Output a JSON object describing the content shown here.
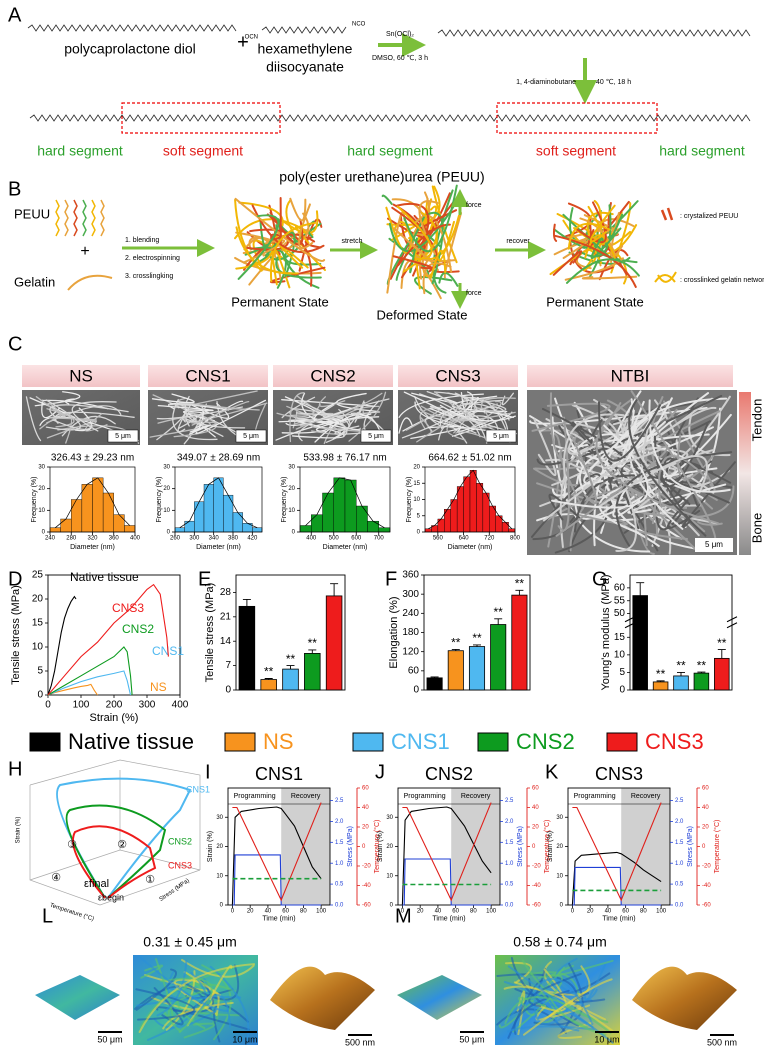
{
  "figure": {
    "panel_labels": [
      "A",
      "B",
      "C",
      "D",
      "E",
      "F",
      "G",
      "H",
      "I",
      "J",
      "K",
      "L",
      "M"
    ],
    "a": {
      "reactant1": "polycaprolactone diol",
      "plus": "+",
      "reactant2": [
        "hexamethylene",
        "diisocyanate"
      ],
      "end_groups": [
        "OCN",
        "NCO"
      ],
      "catalyst": "Sn(OCl)₂",
      "condition1": "DMSO, 60 ℃, 3 h",
      "reagent2": "1, 4-diaminobutane",
      "condition2": "40 ℃, 18 h",
      "segments": [
        "hard segment",
        "soft segment",
        "hard segment",
        "soft segment",
        "hard segment"
      ],
      "product": "poly(ester urethane)urea (PEUU)"
    },
    "b": {
      "peuu": "PEUU",
      "plus": "+",
      "gelatin": "Gelatin",
      "steps": [
        "1. blending",
        "2. electrospinning",
        "3. crosslingking"
      ],
      "state1": "Permanent State",
      "stretch": "stretch",
      "state2": "Deformed State",
      "force": [
        "force",
        "force"
      ],
      "recover": "recover",
      "state3": "Permanent State",
      "legend": [
        ": crystalized PEUU",
        ": crosslinked gelatin network"
      ]
    },
    "c": {
      "headers": [
        "NS",
        "CNS1",
        "CNS2",
        "CNS3",
        "NTBI"
      ],
      "scale_bars": [
        "5 μm",
        "5 μm",
        "5 μm",
        "5 μm",
        "5 μm"
      ],
      "gradient_top": "Tendon",
      "gradient_bottom": "Bone"
    },
    "legend": [
      {
        "name": "Native tissue",
        "color": "#000000"
      },
      {
        "name": "NS",
        "color": "#f7931e"
      },
      {
        "name": "CNS1",
        "color": "#4fb8f0"
      },
      {
        "name": "CNS2",
        "color": "#0d9b1f"
      },
      {
        "name": "CNS3",
        "color": "#ee1c1c"
      }
    ],
    "h": {
      "curves": [
        "CNS1",
        "CNS2",
        "CNS3"
      ],
      "regions": [
        "③",
        "②",
        "④",
        "①"
      ],
      "eps_final": "εfinal",
      "eps_begin": "εbegin",
      "zlabel": "Strain (%)",
      "xlabel": "Temperature (°C)",
      "ylabel": "Stress (MPa)"
    },
    "l": {
      "roughness": "0.31 ± 0.45 μm",
      "scale_bars": [
        "50 μm",
        "10 μm",
        "500 nm"
      ]
    },
    "m": {
      "roughness": "0.58 ± 0.74 μm",
      "scale_bars": [
        "50 μm",
        "10 μm",
        "500 nm"
      ]
    }
  },
  "chart_data": [
    {
      "type": "line",
      "xlabel": "Strain (%)",
      "ylabel": "Tensile stress (MPa)",
      "xlim": [
        0,
        400
      ],
      "ylim": [
        0,
        25
      ],
      "xticks": [
        0,
        100,
        200,
        300,
        400
      ],
      "yticks": [
        0,
        5,
        10,
        15,
        20,
        25
      ],
      "series": [
        {
          "name": "Native tissue",
          "color": "#000000",
          "x": [
            0,
            10,
            20,
            30,
            40,
            50,
            60,
            70,
            80,
            85
          ],
          "values": [
            0,
            2,
            5,
            9,
            13,
            16,
            18,
            19.5,
            20.5,
            20
          ]
        },
        {
          "name": "NS",
          "color": "#f7931e",
          "x": [
            0,
            20,
            50,
            80,
            100,
            120,
            130,
            140,
            150
          ],
          "values": [
            0,
            0.5,
            1,
            1.5,
            1.8,
            2,
            2.2,
            1,
            0
          ]
        },
        {
          "name": "CNS1",
          "color": "#4fb8f0",
          "x": [
            0,
            50,
            100,
            150,
            200,
            230,
            240,
            250
          ],
          "values": [
            0,
            1.5,
            2.8,
            3.8,
            4.5,
            5,
            3,
            0
          ]
        },
        {
          "name": "CNS2",
          "color": "#0d9b1f",
          "x": [
            0,
            50,
            100,
            150,
            200,
            230,
            240,
            250,
            255
          ],
          "values": [
            0,
            2,
            4,
            6,
            8,
            10,
            9,
            4,
            0
          ]
        },
        {
          "name": "CNS3",
          "color": "#ee1c1c",
          "x": [
            0,
            50,
            100,
            150,
            200,
            250,
            300,
            320,
            340,
            360,
            365
          ],
          "values": [
            0,
            4,
            8,
            11,
            15,
            18,
            22,
            23,
            21,
            12,
            8
          ]
        }
      ]
    },
    {
      "type": "bar",
      "ylabel": "Tensile stress (MPa)",
      "ylim": [
        0,
        33
      ],
      "yticks": [
        0,
        7,
        14,
        21,
        28
      ],
      "values": [
        24,
        3,
        6,
        10.5,
        27
      ],
      "errors": [
        2,
        0.3,
        1,
        1,
        3.5
      ],
      "colors": [
        "#000000",
        "#f7931e",
        "#4fb8f0",
        "#0d9b1f",
        "#ee1c1c"
      ],
      "significance": [
        null,
        "**",
        "**",
        "**",
        null
      ]
    },
    {
      "type": "bar",
      "ylabel": "Elongation (%)",
      "ylim": [
        0,
        360
      ],
      "yticks": [
        0,
        60,
        120,
        180,
        240,
        300,
        360
      ],
      "values": [
        38,
        123,
        136,
        205,
        297
      ],
      "errors": [
        3,
        4,
        5,
        18,
        15
      ],
      "colors": [
        "#000000",
        "#f7931e",
        "#4fb8f0",
        "#0d9b1f",
        "#ee1c1c"
      ],
      "significance": [
        null,
        "**",
        "**",
        "**",
        "**"
      ]
    },
    {
      "type": "bar",
      "ylabel": "Young's modulus (MPa)",
      "ylim": [
        0,
        65
      ],
      "ybreak": [
        18,
        48
      ],
      "yticks": [
        0,
        5,
        10,
        15,
        50,
        55,
        60
      ],
      "values": [
        57,
        2.3,
        4,
        4.8,
        9
      ],
      "errors": [
        5,
        0.3,
        1,
        0.3,
        2.5
      ],
      "colors": [
        "#000000",
        "#f7931e",
        "#4fb8f0",
        "#0d9b1f",
        "#ee1c1c"
      ],
      "significance": [
        null,
        "**",
        "**",
        "**",
        "**"
      ]
    },
    {
      "type": "histogram",
      "title": "326.43 ± 29.23 nm",
      "xlabel": "Diameter (nm)",
      "ylabel": "Frequency (%)",
      "color": "#f7931e",
      "bins": [
        240,
        260,
        280,
        300,
        320,
        340,
        360,
        380,
        400
      ],
      "values": [
        2,
        6,
        15,
        22,
        25,
        18,
        8,
        3
      ],
      "xlim": [
        240,
        400
      ],
      "xticks": [
        240,
        280,
        320,
        360,
        400
      ],
      "ylim": [
        0,
        30
      ],
      "yticks": [
        0,
        10,
        20,
        30
      ]
    },
    {
      "type": "histogram",
      "title": "349.07 ± 28.69 nm",
      "xlabel": "Diameter (nm)",
      "ylabel": "Frequency (%)",
      "color": "#4fb8f0",
      "bins": [
        260,
        280,
        300,
        320,
        340,
        360,
        380,
        400,
        420,
        440
      ],
      "values": [
        2,
        5,
        14,
        22,
        25,
        17,
        9,
        4,
        2
      ],
      "xlim": [
        260,
        440
      ],
      "xticks": [
        260,
        300,
        340,
        380,
        420
      ],
      "ylim": [
        0,
        30
      ],
      "yticks": [
        0,
        10,
        20,
        30
      ]
    },
    {
      "type": "histogram",
      "title": "533.98 ± 76.17 nm",
      "xlabel": "Diameter (nm)",
      "ylabel": "Frequency (%)",
      "color": "#0d9b1f",
      "bins": [
        350,
        400,
        450,
        500,
        550,
        600,
        650,
        700,
        750
      ],
      "values": [
        3,
        8,
        18,
        25,
        24,
        12,
        5,
        2
      ],
      "xlim": [
        350,
        750
      ],
      "xticks": [
        400,
        500,
        600,
        700
      ],
      "ylim": [
        0,
        30
      ],
      "yticks": [
        0,
        10,
        20,
        30
      ]
    },
    {
      "type": "histogram",
      "title": "664.62 ± 51.02 nm",
      "xlabel": "Diameter (nm)",
      "ylabel": "Frequency (%)",
      "color": "#ee1c1c",
      "bins": [
        520,
        540,
        560,
        580,
        600,
        620,
        640,
        660,
        680,
        700,
        720,
        740,
        760,
        780,
        800
      ],
      "values": [
        1,
        2,
        4,
        7,
        10,
        14,
        17,
        19,
        15,
        12,
        8,
        5,
        3,
        1
      ],
      "xlim": [
        520,
        800
      ],
      "xticks": [
        560,
        640,
        720,
        800
      ],
      "ylim": [
        0,
        20
      ],
      "yticks": [
        0,
        5,
        10,
        15,
        20
      ]
    },
    {
      "type": "line",
      "title": "CNS1",
      "xlabel": "Time (min)",
      "ylabel": "Strain (%)",
      "y2label": "Stress (MPa)",
      "y3label": "Temperature (°C)",
      "xlim": [
        -5,
        110
      ],
      "xticks": [
        0,
        20,
        40,
        60,
        80,
        100
      ],
      "ylim": [
        0,
        40
      ],
      "yticks": [
        0,
        10,
        20,
        30
      ],
      "y2lim": [
        0,
        2.8
      ],
      "y2ticks": [
        {
          "value": 0,
          "label": "0.0"
        },
        {
          "value": 0.5,
          "label": "0.5"
        },
        {
          "value": 1,
          "label": "1.0"
        },
        {
          "value": 1.5,
          "label": "1.5"
        },
        {
          "value": 2,
          "label": "2.0"
        },
        {
          "value": 2.5,
          "label": "2.5"
        }
      ],
      "y3lim": [
        -60,
        60
      ],
      "y3ticks": [
        -60,
        -40,
        -20,
        0,
        20,
        40,
        60
      ],
      "phases": [
        "Programming",
        "Recovery"
      ],
      "recovery_span": [
        55,
        110
      ],
      "series": [
        {
          "color": "#000000",
          "x": [
            0,
            3,
            10,
            30,
            50,
            55,
            60,
            70,
            80,
            90,
            100
          ],
          "values": [
            0,
            30,
            32,
            33,
            33.5,
            33,
            31,
            27,
            20,
            13,
            9
          ]
        },
        {
          "color": "#1f3fd6",
          "axis": "y2",
          "x": [
            0,
            2,
            3,
            54,
            55,
            100
          ],
          "values": [
            0,
            0,
            1.2,
            1.2,
            0,
            0
          ]
        },
        {
          "color": "#e0201b",
          "axis": "y3",
          "x": [
            0,
            5,
            55,
            100
          ],
          "values": [
            40,
            40,
            -55,
            45
          ]
        },
        {
          "color": "#1a9e3a",
          "dash": true,
          "x": [
            0,
            100
          ],
          "values": [
            9,
            9
          ]
        }
      ]
    },
    {
      "type": "line",
      "title": "CNS2",
      "xlabel": "Time (min)",
      "ylabel": "Strain (%)",
      "y2label": "Stress (MPa)",
      "y3label": "Temperature (°C)",
      "xlim": [
        -5,
        110
      ],
      "xticks": [
        0,
        20,
        40,
        60,
        80,
        100
      ],
      "ylim": [
        0,
        40
      ],
      "yticks": [
        0,
        10,
        20,
        30
      ],
      "y2lim": [
        0,
        2.8
      ],
      "y2ticks": [
        {
          "value": 0,
          "label": "0.0"
        },
        {
          "value": 0.5,
          "label": "0.5"
        },
        {
          "value": 1,
          "label": "1.0"
        },
        {
          "value": 1.5,
          "label": "1.5"
        },
        {
          "value": 2,
          "label": "2.0"
        },
        {
          "value": 2.5,
          "label": "2.5"
        }
      ],
      "y3lim": [
        -60,
        60
      ],
      "y3ticks": [
        -60,
        -40,
        -20,
        0,
        20,
        40,
        60
      ],
      "phases": [
        "Programming",
        "Recovery"
      ],
      "recovery_span": [
        55,
        110
      ],
      "series": [
        {
          "color": "#000000",
          "x": [
            0,
            3,
            10,
            30,
            50,
            55,
            60,
            70,
            80,
            90,
            100
          ],
          "values": [
            0,
            29,
            32,
            33,
            33.5,
            33,
            31,
            27,
            21,
            15,
            11
          ]
        },
        {
          "color": "#1f3fd6",
          "axis": "y2",
          "x": [
            0,
            2,
            3,
            54,
            55,
            100
          ],
          "values": [
            0,
            0,
            1.1,
            1.1,
            0,
            0
          ]
        },
        {
          "color": "#e0201b",
          "axis": "y3",
          "x": [
            0,
            5,
            55,
            100
          ],
          "values": [
            40,
            40,
            -55,
            45
          ]
        },
        {
          "color": "#1a9e3a",
          "dash": true,
          "x": [
            0,
            100
          ],
          "values": [
            7,
            7
          ]
        }
      ]
    },
    {
      "type": "line",
      "title": "CNS3",
      "xlabel": "Time (min)",
      "ylabel": "Strain (%)",
      "y2label": "Stress (MPa)",
      "y3label": "Temperature (°C)",
      "xlim": [
        -5,
        110
      ],
      "xticks": [
        0,
        20,
        40,
        60,
        80,
        100
      ],
      "ylim": [
        0,
        40
      ],
      "yticks": [
        0,
        10,
        20,
        30
      ],
      "y2lim": [
        0,
        2.8
      ],
      "y2ticks": [
        {
          "value": 0,
          "label": "0.0"
        },
        {
          "value": 0.5,
          "label": "0.5"
        },
        {
          "value": 1,
          "label": "1.0"
        },
        {
          "value": 1.5,
          "label": "1.5"
        },
        {
          "value": 2,
          "label": "2.0"
        },
        {
          "value": 2.5,
          "label": "2.5"
        }
      ],
      "y3lim": [
        -60,
        60
      ],
      "y3ticks": [
        -60,
        -40,
        -20,
        0,
        20,
        40,
        60
      ],
      "phases": [
        "Programming",
        "Recovery"
      ],
      "recovery_span": [
        55,
        110
      ],
      "series": [
        {
          "color": "#000000",
          "x": [
            0,
            3,
            10,
            30,
            50,
            55,
            60,
            70,
            80,
            90,
            100
          ],
          "values": [
            0,
            15,
            17,
            17.5,
            18,
            17.5,
            16.5,
            14.5,
            12,
            10,
            8
          ]
        },
        {
          "color": "#1f3fd6",
          "axis": "y2",
          "x": [
            0,
            2,
            3,
            54,
            55,
            100
          ],
          "values": [
            0,
            0,
            0.9,
            0.9,
            0,
            0
          ]
        },
        {
          "color": "#e0201b",
          "axis": "y3",
          "x": [
            0,
            5,
            55,
            100
          ],
          "values": [
            40,
            40,
            -55,
            45
          ]
        },
        {
          "color": "#1a9e3a",
          "dash": true,
          "x": [
            0,
            100
          ],
          "values": [
            5,
            5
          ]
        }
      ]
    }
  ]
}
